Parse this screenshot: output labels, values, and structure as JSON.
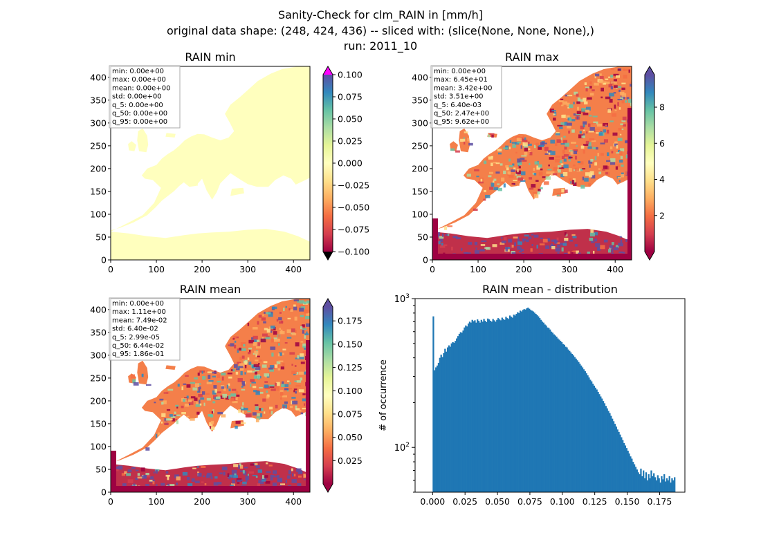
{
  "suptitle": {
    "line1": "Sanity-Check for clm_RAIN in [mm/h]",
    "line2": "original data shape: (248, 424, 436) -- sliced with: (slice(None, None, None),)",
    "line3": "run: 2011_10"
  },
  "chart_data": [
    {
      "type": "heatmap",
      "title": "RAIN min",
      "xlim": [
        0,
        436
      ],
      "ylim": [
        0,
        424
      ],
      "xticks": [
        "0",
        "100",
        "200",
        "300",
        "400"
      ],
      "yticks": [
        "0",
        "50",
        "100",
        "150",
        "200",
        "250",
        "300",
        "350",
        "400"
      ],
      "colormap": "Spectral",
      "colorbar": {
        "range": [
          -0.1,
          0.1
        ],
        "ticks": [
          "0.100",
          "0.075",
          "0.050",
          "0.025",
          "0.000",
          "−0.025",
          "−0.050",
          "−0.075",
          "−0.100"
        ],
        "extend": "both",
        "over_color": "#ff00ff",
        "under_color": "#000000"
      },
      "stats": [
        "min: 0.00e+00",
        "max: 0.00e+00",
        "mean: 0.00e+00",
        "std: 0.00e+00",
        "q_5: 0.00e+00",
        "q_50: 0.00e+00",
        "q_95: 0.00e+00"
      ],
      "fill_color": "#ffffbe"
    },
    {
      "type": "heatmap",
      "title": "RAIN max",
      "xlim": [
        0,
        436
      ],
      "ylim": [
        0,
        424
      ],
      "xticks": [
        "0",
        "100",
        "200",
        "300",
        "400"
      ],
      "yticks": [
        "0",
        "50",
        "100",
        "150",
        "200",
        "250",
        "300",
        "350",
        "400"
      ],
      "colormap": "Spectral",
      "colorbar": {
        "range": [
          0,
          9.8
        ],
        "ticks": [
          "2",
          "4",
          "6",
          "8"
        ],
        "extend": "both"
      },
      "stats": [
        "min: 0.00e+00",
        "max: 6.45e+01",
        "mean: 3.42e+00",
        "std: 3.51e+00",
        "q_5: 6.40e-03",
        "q_50: 2.47e+00",
        "q_95: 9.62e+00"
      ]
    },
    {
      "type": "heatmap",
      "title": "RAIN mean",
      "xlim": [
        0,
        436
      ],
      "ylim": [
        0,
        424
      ],
      "xticks": [
        "0",
        "100",
        "200",
        "300",
        "400"
      ],
      "yticks": [
        "0",
        "50",
        "100",
        "150",
        "200",
        "250",
        "300",
        "350",
        "400"
      ],
      "colormap": "Spectral",
      "colorbar": {
        "range": [
          0,
          0.19
        ],
        "ticks": [
          "0.025",
          "0.050",
          "0.075",
          "0.100",
          "0.125",
          "0.150",
          "0.175"
        ],
        "extend": "both"
      },
      "stats": [
        "min: 0.00e+00",
        "max: 1.11e+00",
        "mean: 7.49e-02",
        "std: 6.40e-02",
        "q_5: 2.99e-05",
        "q_50: 6.44e-02",
        "q_95: 1.86e-01"
      ]
    },
    {
      "type": "bar",
      "title": "RAIN mean - distribution",
      "ylabel": "# of occurrence",
      "xlabel": "",
      "yscale": "log",
      "xlim": [
        -0.0135,
        0.1945
      ],
      "ylim": [
        50,
        1000
      ],
      "xticks": [
        "0.000",
        "0.025",
        "0.050",
        "0.075",
        "0.100",
        "0.125",
        "0.150",
        "0.175"
      ],
      "yticks_major": [
        "10^2",
        "10^3"
      ],
      "bar_color": "#1f77b4",
      "bin_start": 0.0,
      "bin_width": 0.001,
      "values": [
        760,
        330,
        345,
        355,
        370,
        400,
        420,
        405,
        430,
        460,
        440,
        470,
        485,
        475,
        500,
        510,
        505,
        520,
        540,
        560,
        580,
        595,
        590,
        610,
        640,
        660,
        650,
        680,
        700,
        690,
        720,
        705,
        715,
        690,
        725,
        710,
        690,
        720,
        700,
        730,
        710,
        695,
        735,
        725,
        710,
        700,
        730,
        715,
        700,
        720,
        740,
        725,
        715,
        745,
        730,
        720,
        755,
        740,
        730,
        770,
        755,
        745,
        780,
        770,
        790,
        810,
        800,
        830,
        820,
        840,
        850,
        845,
        860,
        870,
        855,
        840,
        830,
        820,
        805,
        790,
        775,
        760,
        740,
        720,
        700,
        690,
        670,
        660,
        640,
        635,
        620,
        600,
        590,
        575,
        565,
        555,
        540,
        530,
        520,
        510,
        495,
        490,
        475,
        470,
        455,
        445,
        435,
        425,
        415,
        405,
        395,
        385,
        375,
        365,
        355,
        345,
        335,
        325,
        315,
        305,
        295,
        285,
        278,
        268,
        260,
        252,
        245,
        236,
        228,
        220,
        213,
        205,
        198,
        190,
        183,
        176,
        170,
        163,
        156,
        150,
        144,
        138,
        132,
        127,
        122,
        117,
        112,
        107,
        103,
        99,
        95,
        91,
        87,
        84,
        80,
        77,
        74,
        71,
        68,
        66,
        72,
        64,
        70,
        62,
        68,
        60,
        66,
        62,
        70,
        64,
        67,
        63,
        60,
        65,
        62,
        58,
        64,
        61,
        66,
        59,
        62,
        60,
        64,
        58,
        62,
        60,
        63
      ]
    }
  ]
}
